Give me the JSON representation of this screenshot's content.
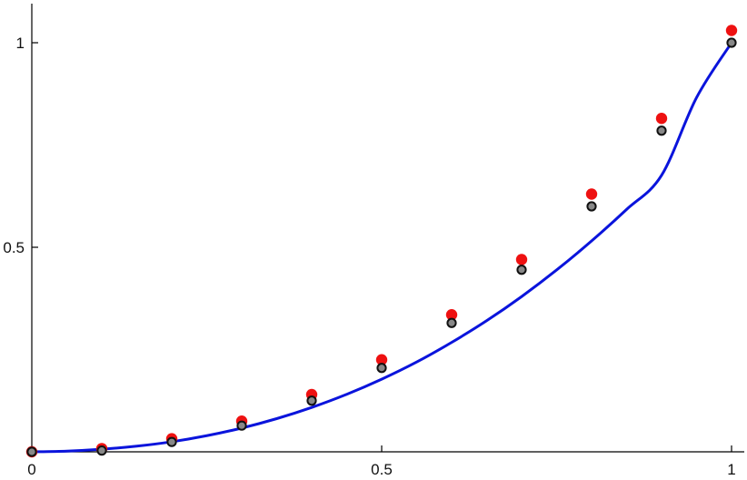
{
  "chart_data": {
    "type": "scatter",
    "title": "",
    "xlabel": "",
    "ylabel": "",
    "xlim": [
      0,
      1
    ],
    "ylim": [
      0,
      1
    ],
    "grid": false,
    "x_ticks": [
      {
        "value": 0,
        "label": "0"
      },
      {
        "value": 0.5,
        "label": "0.5"
      },
      {
        "value": 1,
        "label": "1"
      }
    ],
    "y_ticks": [
      {
        "value": 0.5,
        "label": "0.5"
      },
      {
        "value": 1,
        "label": "1"
      }
    ],
    "series": [
      {
        "kind": "line",
        "color": "#0a14dc",
        "x": [
          0,
          0.05,
          0.1,
          0.15,
          0.2,
          0.25,
          0.3,
          0.35,
          0.4,
          0.45,
          0.5,
          0.55,
          0.6,
          0.65,
          0.7,
          0.75,
          0.8,
          0.85,
          0.9,
          0.95,
          1
        ],
        "y": [
          0,
          0.0017,
          0.0063,
          0.0138,
          0.0246,
          0.0394,
          0.0581,
          0.0811,
          0.1085,
          0.1405,
          0.1775,
          0.2195,
          0.2675,
          0.3205,
          0.3795,
          0.4445,
          0.5155,
          0.5925,
          0.676,
          0.866,
          1
        ]
      },
      {
        "kind": "scatter",
        "marker": "hollow",
        "color": "#888888",
        "edge_color": "#111111",
        "x": [
          0,
          0.1,
          0.2,
          0.3,
          0.4,
          0.5,
          0.6,
          0.7,
          0.8,
          0.9,
          1
        ],
        "y": [
          0,
          0.003,
          0.024,
          0.064,
          0.125,
          0.205,
          0.315,
          0.445,
          0.6,
          0.785,
          1
        ]
      },
      {
        "kind": "scatter",
        "marker": "filled",
        "color": "#ee1111",
        "x": [
          0,
          0.1,
          0.2,
          0.3,
          0.4,
          0.5,
          0.6,
          0.7,
          0.8,
          0.9,
          1
        ],
        "y": [
          0,
          0.008,
          0.032,
          0.075,
          0.14,
          0.225,
          0.335,
          0.47,
          0.63,
          0.815,
          1.03
        ]
      }
    ]
  }
}
